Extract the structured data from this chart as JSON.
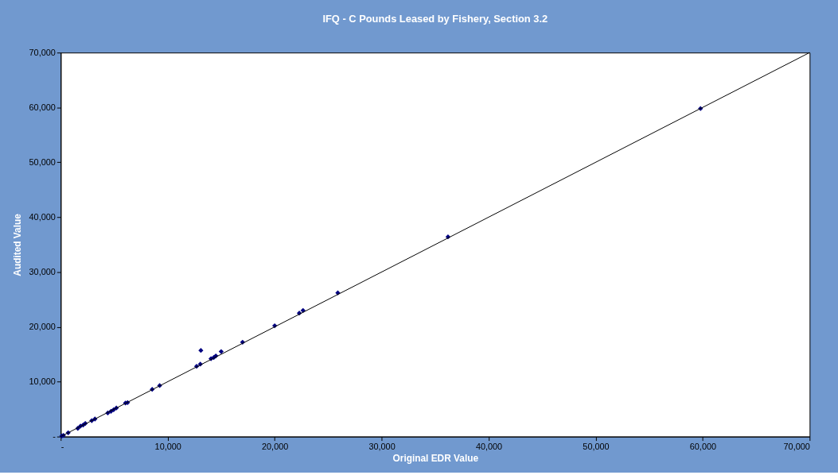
{
  "chart_data": {
    "type": "scatter",
    "title": "IFQ - C Pounds Leased by Fishery, Section 3.2",
    "xlabel": "Original EDR Value",
    "ylabel": "Audited Value",
    "xlim": [
      0,
      70000
    ],
    "ylim": [
      0,
      70000
    ],
    "xticks": [
      {
        "value": 0,
        "label": "-"
      },
      {
        "value": 10000,
        "label": "10,000"
      },
      {
        "value": 20000,
        "label": "20,000"
      },
      {
        "value": 30000,
        "label": "30,000"
      },
      {
        "value": 40000,
        "label": "40,000"
      },
      {
        "value": 50000,
        "label": "50,000"
      },
      {
        "value": 60000,
        "label": "60,000"
      },
      {
        "value": 70000,
        "label": "70,000"
      }
    ],
    "yticks": [
      {
        "value": 0,
        "label": "-"
      },
      {
        "value": 10000,
        "label": "10,000"
      },
      {
        "value": 20000,
        "label": "20,000"
      },
      {
        "value": 30000,
        "label": "30,000"
      },
      {
        "value": 40000,
        "label": "40,000"
      },
      {
        "value": 50000,
        "label": "50,000"
      },
      {
        "value": 60000,
        "label": "60,000"
      },
      {
        "value": 70000,
        "label": "70,000"
      }
    ],
    "grid": false,
    "marker": "diamond",
    "series": [
      {
        "type": "scatter",
        "color": "#000080",
        "x": [
          100,
          250,
          700,
          1600,
          1850,
          2100,
          2300,
          2900,
          3200,
          4400,
          4700,
          4950,
          5200,
          6050,
          6250,
          8550,
          9250,
          12700,
          13050,
          13100,
          14050,
          14300,
          14500,
          15000,
          17000,
          20000,
          22300,
          22650,
          25900,
          36200,
          59800
        ],
        "values": [
          100,
          200,
          700,
          1500,
          1900,
          2100,
          2400,
          2900,
          3200,
          4300,
          4600,
          4900,
          5200,
          6100,
          6200,
          8600,
          9300,
          12800,
          13200,
          15700,
          14200,
          14400,
          14700,
          15500,
          17200,
          20200,
          22500,
          23000,
          26200,
          36400,
          59800
        ]
      },
      {
        "type": "line",
        "color": "#000000",
        "line_style": "solid",
        "marker": "none",
        "x": [
          0,
          70000
        ],
        "values": [
          0,
          70000
        ]
      }
    ]
  }
}
